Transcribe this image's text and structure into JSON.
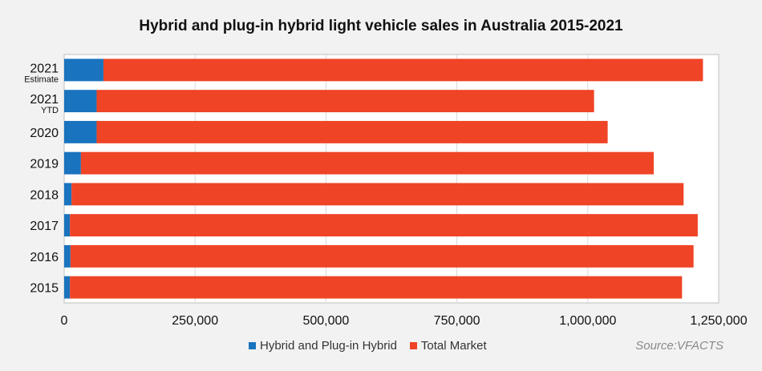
{
  "chart_data": {
    "type": "bar",
    "orientation": "horizontal",
    "stacked": true,
    "title": "Hybrid and plug-in hybrid light vehicle sales in Australia 2015-2021",
    "categories": [
      "2021",
      "2021",
      "2020",
      "2019",
      "2018",
      "2017",
      "2016",
      "2015"
    ],
    "category_sublabels": [
      "Estimate",
      "YTD",
      "",
      "",
      "",
      "",
      "",
      ""
    ],
    "series": [
      {
        "name": "Hybrid and Plug-in Hybrid",
        "color": "#1a73be",
        "values": [
          75000,
          62000,
          62000,
          32000,
          14000,
          11000,
          12000,
          11000
        ]
      },
      {
        "name": "Total Market",
        "color": "#ef4426",
        "values": [
          1145000,
          950000,
          976000,
          1094000,
          1169000,
          1199000,
          1190000,
          1169000
        ]
      }
    ],
    "xlim": [
      0,
      1250000
    ],
    "xticks": [
      0,
      250000,
      500000,
      750000,
      1000000,
      1250000
    ],
    "xtick_labels": [
      "0",
      "250,000",
      "500,000",
      "750,000",
      "1,000,000",
      "1,250,000"
    ],
    "xlabel": "",
    "ylabel": "",
    "grid": "vertical",
    "legend_position": "bottom",
    "source": "Source:VFACTS"
  }
}
